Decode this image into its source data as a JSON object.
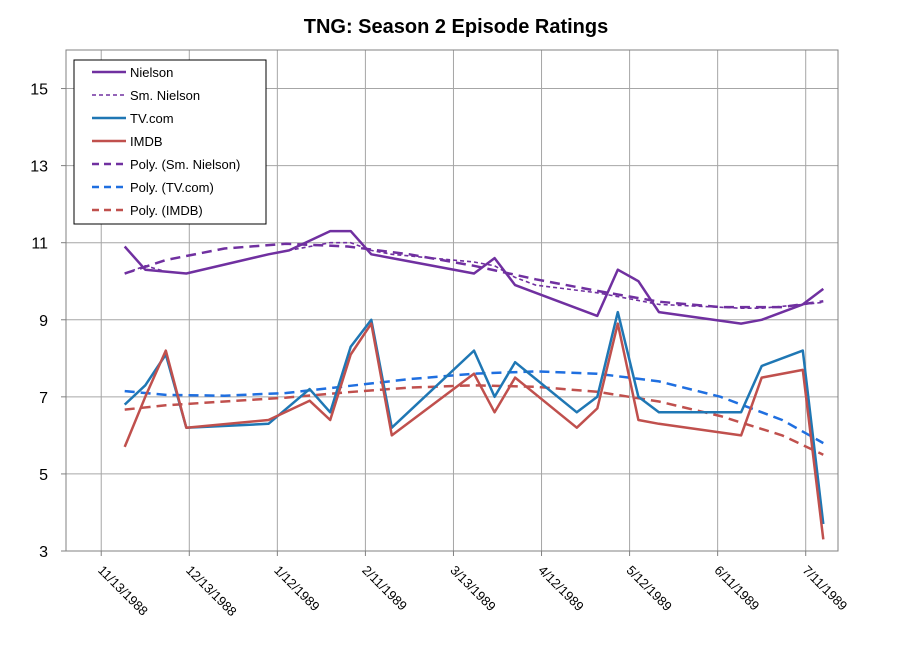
{
  "chart_data": {
    "type": "line",
    "title": "TNG: Season 2 Episode Ratings",
    "xlabel": "",
    "ylabel": "",
    "ylim": [
      3,
      16
    ],
    "yticks": [
      3,
      5,
      7,
      9,
      11,
      13,
      15
    ],
    "xlim": [
      "11/1/1988",
      "7/22/1989"
    ],
    "xticks": [
      "11/13/1988",
      "12/13/1988",
      "1/12/1989",
      "2/11/1989",
      "3/13/1989",
      "4/12/1989",
      "5/12/1989",
      "6/11/1989",
      "7/11/1989"
    ],
    "grid": true,
    "legend": "top-left",
    "colors": {
      "nielson": "#7030a0",
      "tvcom": "#1f77b4",
      "imdb": "#c0504d",
      "poly_tvcom": "#1f6fe0",
      "poly_imdb": "#c0504d"
    },
    "series": [
      {
        "name": "Nielson",
        "style": "solid",
        "x": [
          "11/21/1988",
          "11/28/1988",
          "12/5/1988",
          "12/12/1988",
          "1/9/1989",
          "1/16/1989",
          "1/30/1989",
          "2/6/1989",
          "2/13/1989",
          "2/20/1989",
          "3/20/1989",
          "3/27/1989",
          "4/3/1989",
          "4/10/1989",
          "5/1/1989",
          "5/8/1989",
          "5/15/1989",
          "5/22/1989",
          "6/19/1989",
          "6/26/1989",
          "7/10/1989",
          "7/17/1989"
        ],
        "values": [
          10.9,
          10.3,
          10.25,
          10.2,
          10.7,
          10.8,
          11.3,
          11.3,
          10.7,
          10.6,
          10.2,
          10.6,
          9.9,
          9.7,
          9.1,
          10.3,
          10.0,
          9.2,
          8.9,
          9.0,
          9.4,
          9.8
        ]
      },
      {
        "name": "Sm. Nielson",
        "style": "dotted",
        "x": [
          "11/21/1988",
          "11/28/1988",
          "12/5/1988",
          "12/12/1988",
          "1/9/1989",
          "1/16/1989",
          "1/30/1989",
          "2/6/1989",
          "2/13/1989",
          "2/20/1989",
          "3/20/1989",
          "3/27/1989",
          "4/3/1989",
          "4/10/1989",
          "5/1/1989",
          "5/8/1989",
          "5/15/1989",
          "5/22/1989",
          "6/19/1989",
          "6/26/1989",
          "7/10/1989",
          "7/17/1989"
        ],
        "values": [
          10.2,
          10.4,
          10.25,
          10.2,
          10.7,
          10.8,
          11.0,
          11.0,
          10.8,
          10.7,
          10.5,
          10.4,
          10.1,
          9.9,
          9.7,
          9.6,
          9.5,
          9.4,
          9.3,
          9.3,
          9.4,
          9.45
        ]
      },
      {
        "name": "TV.com",
        "style": "solid",
        "x": [
          "11/21/1988",
          "11/28/1988",
          "12/5/1988",
          "12/12/1988",
          "1/9/1989",
          "1/23/1989",
          "1/30/1989",
          "2/6/1989",
          "2/13/1989",
          "2/20/1989",
          "3/20/1989",
          "3/27/1989",
          "4/3/1989",
          "4/24/1989",
          "5/1/1989",
          "5/8/1989",
          "5/15/1989",
          "5/22/1989",
          "6/19/1989",
          "6/26/1989",
          "7/10/1989",
          "7/17/1989"
        ],
        "values": [
          6.8,
          7.3,
          8.1,
          6.2,
          6.3,
          7.2,
          6.6,
          8.3,
          9.0,
          6.2,
          8.2,
          7.0,
          7.9,
          6.6,
          7.0,
          9.2,
          7.0,
          6.6,
          6.6,
          7.8,
          8.2,
          3.7
        ]
      },
      {
        "name": "IMDB",
        "style": "solid",
        "x": [
          "11/21/1988",
          "11/28/1988",
          "12/5/1988",
          "12/12/1988",
          "1/9/1989",
          "1/23/1989",
          "1/30/1989",
          "2/6/1989",
          "2/13/1989",
          "2/20/1989",
          "3/20/1989",
          "3/27/1989",
          "4/3/1989",
          "4/24/1989",
          "5/1/1989",
          "5/8/1989",
          "5/15/1989",
          "5/22/1989",
          "6/19/1989",
          "6/26/1989",
          "7/10/1989",
          "7/17/1989"
        ],
        "values": [
          5.7,
          7.0,
          8.2,
          6.2,
          6.4,
          6.9,
          6.4,
          8.1,
          8.9,
          6.0,
          7.6,
          6.6,
          7.5,
          6.2,
          6.7,
          8.9,
          6.4,
          6.3,
          6.0,
          7.5,
          7.7,
          3.3
        ]
      },
      {
        "name": "Poly. (Sm. Nielson)",
        "style": "dashed",
        "x": [
          "11/21/1988",
          "12/5/1988",
          "12/25/1988",
          "1/15/1989",
          "2/5/1989",
          "2/26/1989",
          "3/20/1989",
          "4/10/1989",
          "5/1/1989",
          "5/22/1989",
          "6/12/1989",
          "7/3/1989",
          "7/17/1989"
        ],
        "values": [
          10.2,
          10.55,
          10.85,
          10.97,
          10.9,
          10.7,
          10.4,
          10.05,
          9.75,
          9.47,
          9.33,
          9.33,
          9.48
        ]
      },
      {
        "name": "Poly. (TV.com)",
        "style": "dashed",
        "x": [
          "11/21/1988",
          "12/5/1988",
          "12/25/1988",
          "1/15/1989",
          "2/5/1989",
          "2/26/1989",
          "3/20/1989",
          "4/10/1989",
          "5/1/1989",
          "5/22/1989",
          "6/12/1989",
          "7/3/1989",
          "7/17/1989"
        ],
        "values": [
          7.15,
          7.05,
          7.03,
          7.1,
          7.28,
          7.46,
          7.6,
          7.66,
          7.6,
          7.4,
          7.0,
          6.4,
          5.8
        ]
      },
      {
        "name": "Poly. (IMDB)",
        "style": "dashed",
        "x": [
          "11/21/1988",
          "12/5/1988",
          "12/25/1988",
          "1/15/1989",
          "2/5/1989",
          "2/26/1989",
          "3/20/1989",
          "4/10/1989",
          "5/1/1989",
          "5/22/1989",
          "6/12/1989",
          "7/3/1989",
          "7/17/1989"
        ],
        "values": [
          6.67,
          6.78,
          6.88,
          6.98,
          7.12,
          7.24,
          7.3,
          7.26,
          7.13,
          6.88,
          6.5,
          6.0,
          5.5
        ]
      }
    ]
  }
}
